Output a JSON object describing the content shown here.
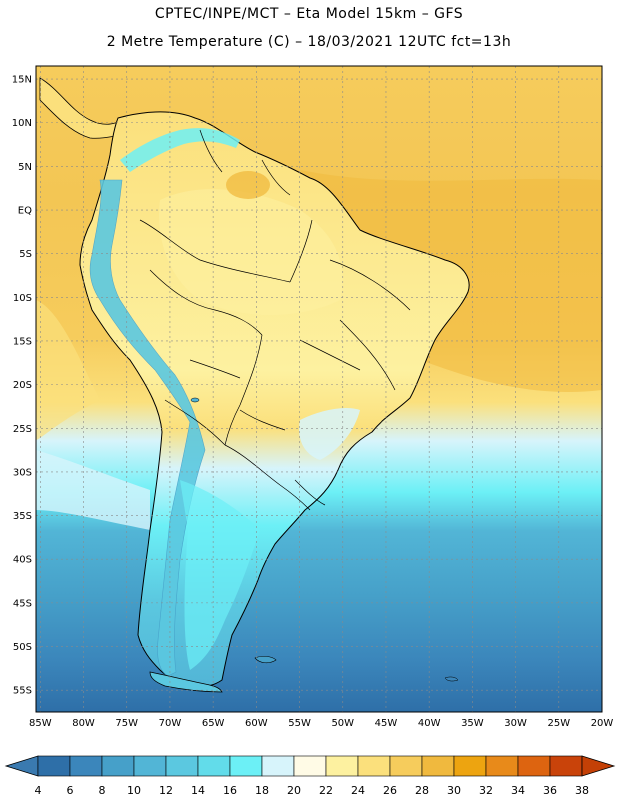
{
  "header": {
    "line1": "CPTEC/INPE/MCT –  Eta Model 15km – GFS",
    "line2": "2 Metre Temperature (C) – 18/03/2021 12UTC fct=13h"
  },
  "map": {
    "lat_labels": [
      "15N",
      "10N",
      "5N",
      "EQ",
      "5S",
      "10S",
      "15S",
      "20S",
      "25S",
      "30S",
      "35S",
      "40S",
      "45S",
      "50S",
      "55S"
    ],
    "lon_labels": [
      "85W",
      "80W",
      "75W",
      "70W",
      "65W",
      "60W",
      "55W",
      "50W",
      "45W",
      "40W",
      "35W",
      "30W",
      "25W",
      "20W"
    ],
    "extent": {
      "lon": [
        -85.5,
        -20
      ],
      "lat": [
        -57.5,
        16.5
      ]
    },
    "grid": true
  },
  "legend": {
    "labels": [
      "4",
      "6",
      "8",
      "10",
      "12",
      "14",
      "16",
      "18",
      "20",
      "22",
      "24",
      "26",
      "28",
      "30",
      "32",
      "34",
      "36",
      "38"
    ],
    "colors": [
      "#2e6fa8",
      "#3b86bb",
      "#46a0c9",
      "#52b5d6",
      "#5bc8e0",
      "#62dcea",
      "#6cf0f6",
      "#d7f4fb",
      "#fffbe6",
      "#fdf1a0",
      "#fbe07c",
      "#f6cc5c",
      "#f0b93e",
      "#eda410",
      "#e88a1a",
      "#dd6410",
      "#c9430a"
    ],
    "end_low": "#3a7ab0",
    "end_high": "#c44006"
  }
}
